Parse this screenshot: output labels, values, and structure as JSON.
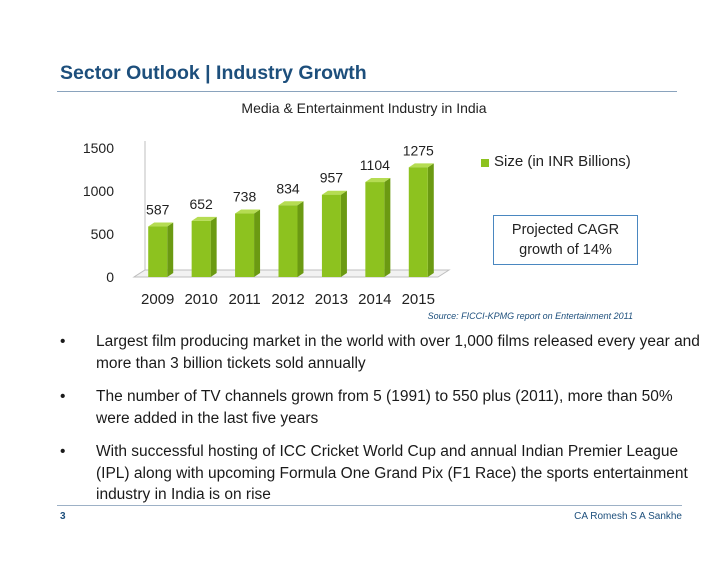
{
  "slide": {
    "title": "Sector Outlook | Industry Growth",
    "page_number": "3",
    "author": "CA Romesh S A Sankhe",
    "source": "Source: FICCI-KPMG report on Entertainment 2011",
    "cagr_line1": "Projected CAGR",
    "cagr_line2": "growth of 14%"
  },
  "bullets": [
    "Largest film producing market in the world with over 1,000 films released every year and more than 3 billion tickets sold annually",
    "The number of TV channels grown from 5 (1991) to 550 plus (2011), more than 50% were added in the last five years",
    "With successful hosting of ICC Cricket World Cup and annual Indian Premier League (IPL) along with upcoming Formula One Grand Pix (F1 Race) the sports entertainment industry in India is on rise"
  ],
  "bullet_marker": "•",
  "chart_data": {
    "type": "bar",
    "title": "Media & Entertainment Industry in India",
    "categories": [
      "2009",
      "2010",
      "2011",
      "2012",
      "2013",
      "2014",
      "2015"
    ],
    "series": [
      {
        "name": "Size (in INR Billions)",
        "values": [
          587,
          652,
          738,
          834,
          957,
          1104,
          1275
        ],
        "color": "#8dc21f"
      }
    ],
    "ylim": [
      0,
      1500
    ],
    "yticks": [
      0,
      500,
      1000,
      1500
    ],
    "grid": false,
    "legend": "right",
    "style": "3d"
  }
}
